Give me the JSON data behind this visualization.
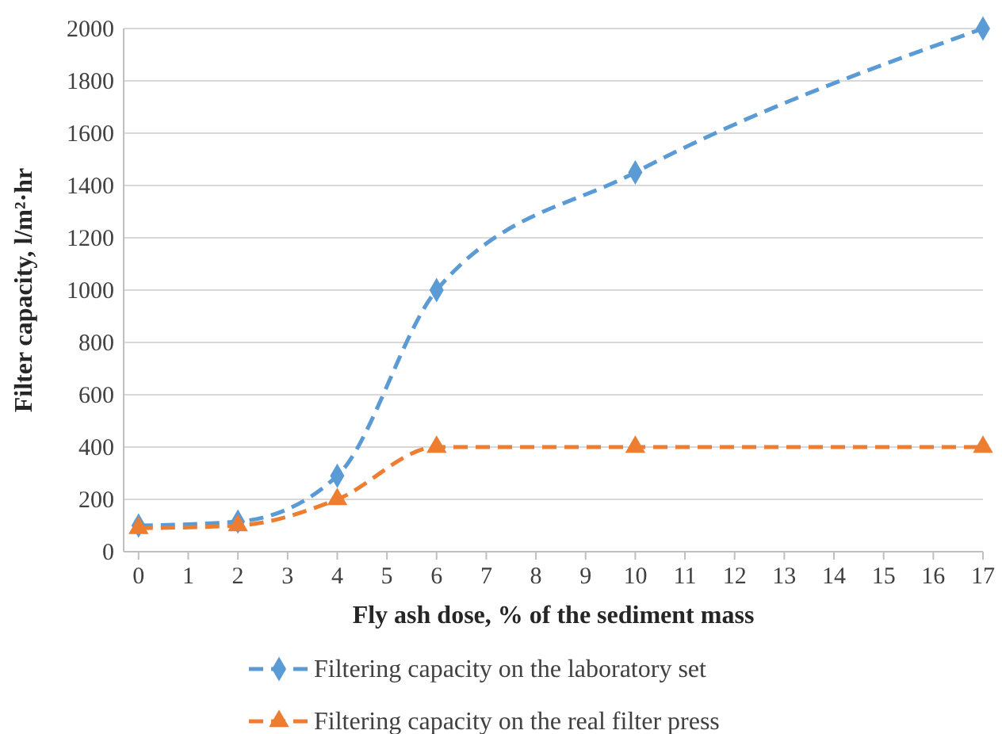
{
  "chart_data": {
    "type": "line",
    "xlabel": "Fly ash dose, % of the sediment mass",
    "ylabel": "Filter capacity, l/m²·hr",
    "x": [
      0,
      2,
      4,
      6,
      10,
      17
    ],
    "series": [
      {
        "name": "Filtering capacity on the laboratory set",
        "color": "#5b9bd5",
        "values": [
          100,
          115,
          290,
          1000,
          1450,
          2000
        ],
        "marker": "diamond"
      },
      {
        "name": "Filtering capacity on the real filter press",
        "color": "#ed7d31",
        "values": [
          90,
          100,
          200,
          400,
          400,
          400
        ],
        "marker": "triangle"
      }
    ],
    "xlim": [
      -0.3,
      17
    ],
    "xticks": [
      0,
      1,
      2,
      3,
      4,
      5,
      6,
      7,
      8,
      9,
      10,
      11,
      12,
      13,
      14,
      15,
      16,
      17
    ],
    "ylim": [
      0,
      2000
    ],
    "yticks": [
      0,
      200,
      400,
      600,
      800,
      1000,
      1200,
      1400,
      1600,
      1800,
      2000
    ],
    "grid": "y",
    "legend": "bottom",
    "line_style": "dashed"
  }
}
